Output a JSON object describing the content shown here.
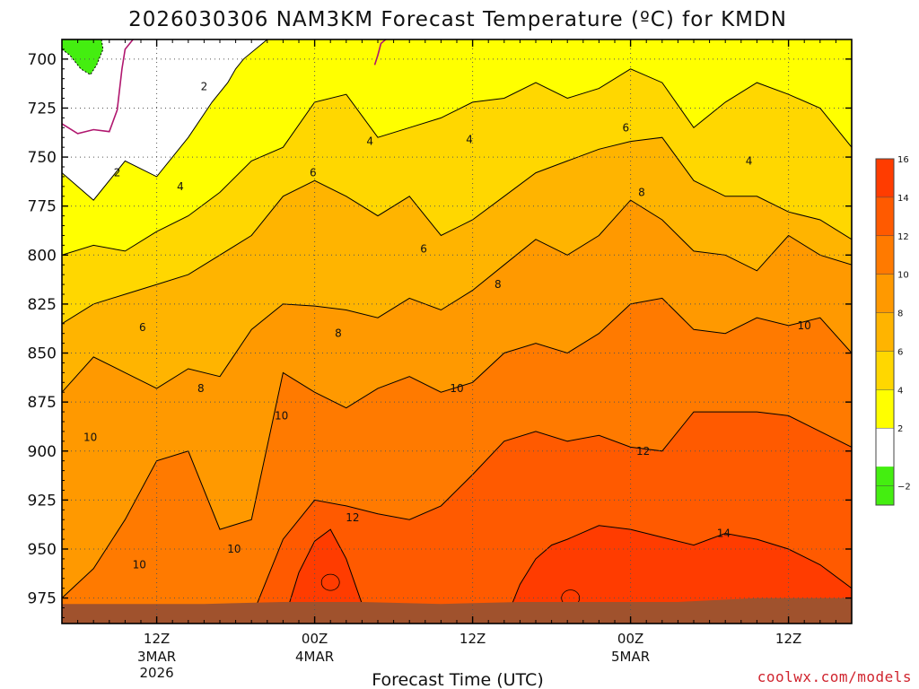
{
  "chart_data": {
    "type": "heatmap",
    "title": "2026030306 NAM3KM Forecast Temperature (ºC) for KMDN",
    "xlabel": "Forecast Time (UTC)",
    "ylabel": "",
    "yaxis": {
      "inverted": true,
      "ylim": [
        988,
        690
      ],
      "ticks": [
        "700",
        "725",
        "750",
        "775",
        "800",
        "825",
        "850",
        "875",
        "900",
        "925",
        "950",
        "975"
      ]
    },
    "xaxis": {
      "xlim": [
        6,
        56
      ],
      "ticks": [
        {
          "x": 12,
          "l1": "12Z",
          "l2": "3MAR",
          "l3": "2026"
        },
        {
          "x": 22,
          "l1": "00Z",
          "l2": "4MAR",
          "l3": ""
        },
        {
          "x": 32,
          "l1": "12Z",
          "l2": "",
          "l3": ""
        },
        {
          "x": 42,
          "l1": "00Z",
          "l2": "5MAR",
          "l3": ""
        },
        {
          "x": 52,
          "l1": "12Z",
          "l2": "",
          "l3": ""
        }
      ]
    },
    "grid": true,
    "colorbar": {
      "colors": [
        "#44ee10",
        "#ffffff",
        "#ffff00",
        "#ffd700",
        "#ffb400",
        "#ff9900",
        "#ff7a00",
        "#ff5a00",
        "#ff3c00"
      ],
      "labels": [
        "-2",
        "2",
        "4",
        "6",
        "8",
        "10",
        "12",
        "14",
        "16"
      ]
    },
    "isotherms": [
      {
        "value": 2,
        "x": [
          6,
          8,
          10,
          12,
          14,
          15.5,
          16.5,
          17,
          17.5,
          19,
          21,
          23,
          25,
          27,
          29,
          31,
          33,
          35,
          37,
          39,
          41,
          43,
          45,
          47,
          49,
          51,
          53,
          56
        ],
        "p": [
          758,
          772,
          752,
          760,
          740,
          722,
          712,
          705,
          700,
          690,
          690,
          690,
          690,
          690,
          690,
          690,
          690,
          690,
          690,
          690,
          690,
          690,
          690,
          690,
          690,
          690,
          690,
          690
        ]
      },
      {
        "value": 4,
        "x": [
          6,
          8,
          10,
          12,
          14,
          16,
          18,
          20,
          22,
          24,
          26,
          28,
          30,
          32,
          34,
          36,
          38,
          40,
          42,
          44,
          46,
          48,
          50,
          52,
          54,
          56
        ],
        "p": [
          800,
          795,
          798,
          788,
          780,
          768,
          752,
          745,
          722,
          718,
          740,
          735,
          730,
          722,
          720,
          712,
          720,
          715,
          705,
          712,
          735,
          722,
          712,
          718,
          725,
          745
        ]
      },
      {
        "value": 6,
        "x": [
          6,
          8,
          10,
          12,
          14,
          16,
          18,
          20,
          22,
          24,
          26,
          28,
          30,
          32,
          34,
          36,
          38,
          40,
          42,
          44,
          46,
          48,
          50,
          52,
          54,
          56
        ],
        "p": [
          835,
          825,
          820,
          815,
          810,
          800,
          790,
          770,
          762,
          770,
          780,
          770,
          790,
          782,
          770,
          758,
          752,
          746,
          742,
          740,
          762,
          770,
          770,
          778,
          782,
          792
        ]
      },
      {
        "value": 8,
        "x": [
          6,
          8,
          10,
          12,
          14,
          16,
          18,
          20,
          22,
          24,
          26,
          28,
          30,
          32,
          34,
          36,
          38,
          40,
          42,
          44,
          46,
          48,
          50,
          52,
          54,
          56
        ],
        "p": [
          870,
          852,
          860,
          868,
          858,
          862,
          838,
          825,
          826,
          828,
          832,
          822,
          828,
          818,
          805,
          792,
          800,
          790,
          772,
          782,
          798,
          800,
          808,
          790,
          800,
          805
        ]
      },
      {
        "value": 10,
        "x": [
          6,
          8,
          10,
          12,
          14,
          16,
          18,
          20,
          22,
          24,
          26,
          28,
          30,
          32,
          34,
          36,
          38,
          40,
          42,
          44,
          46,
          48,
          50,
          52,
          54,
          56
        ],
        "p": [
          975,
          960,
          935,
          905,
          900,
          940,
          935,
          860,
          870,
          878,
          868,
          862,
          870,
          865,
          850,
          845,
          850,
          840,
          825,
          822,
          838,
          840,
          832,
          836,
          832,
          850
        ]
      },
      {
        "value": 12,
        "x": [
          6,
          8,
          10,
          12,
          14,
          16,
          18,
          20,
          22,
          24,
          26,
          28,
          30,
          32,
          34,
          36,
          38,
          40,
          42,
          44,
          46,
          48,
          50,
          52,
          54,
          56
        ],
        "p": [
          988,
          988,
          988,
          988,
          988,
          988,
          985,
          945,
          925,
          928,
          932,
          935,
          928,
          912,
          895,
          890,
          895,
          892,
          898,
          900,
          880,
          880,
          880,
          882,
          890,
          898
        ]
      },
      {
        "value": 14,
        "x": [
          20,
          21,
          22,
          23,
          24,
          25,
          26,
          27,
          34,
          35,
          36,
          37,
          38,
          40,
          42,
          44,
          46,
          48,
          50,
          52,
          54,
          56
        ],
        "p": [
          988,
          962,
          946,
          940,
          955,
          978,
          988,
          988,
          988,
          968,
          955,
          948,
          945,
          938,
          940,
          944,
          948,
          942,
          945,
          950,
          958,
          970
        ]
      }
    ],
    "labels": [
      {
        "text": "2",
        "x": 15.0,
        "p": 714
      },
      {
        "text": "2",
        "x": 9.5,
        "p": 758
      },
      {
        "text": "4",
        "x": 13.5,
        "p": 765
      },
      {
        "text": "4",
        "x": 25.5,
        "p": 742
      },
      {
        "text": "4",
        "x": 31.8,
        "p": 741
      },
      {
        "text": "4",
        "x": 49.5,
        "p": 752
      },
      {
        "text": "6",
        "x": 21.9,
        "p": 758
      },
      {
        "text": "6",
        "x": 28.9,
        "p": 797
      },
      {
        "text": "6",
        "x": 11.1,
        "p": 837
      },
      {
        "text": "6",
        "x": 41.7,
        "p": 735
      },
      {
        "text": "8",
        "x": 23.5,
        "p": 840
      },
      {
        "text": "8",
        "x": 14.8,
        "p": 868
      },
      {
        "text": "8",
        "x": 33.6,
        "p": 815
      },
      {
        "text": "8",
        "x": 42.7,
        "p": 768
      },
      {
        "text": "10",
        "x": 7.8,
        "p": 893
      },
      {
        "text": "10",
        "x": 19.9,
        "p": 882
      },
      {
        "text": "10",
        "x": 31.0,
        "p": 868
      },
      {
        "text": "10",
        "x": 10.9,
        "p": 958
      },
      {
        "text": "10",
        "x": 16.9,
        "p": 950
      },
      {
        "text": "10",
        "x": 53.0,
        "p": 836
      },
      {
        "text": "12",
        "x": 24.4,
        "p": 934
      },
      {
        "text": "12",
        "x": 42.8,
        "p": 900
      },
      {
        "text": "14",
        "x": 47.9,
        "p": 942
      }
    ],
    "coldpocket": {
      "x": [
        6,
        6.5,
        7,
        7.5,
        8,
        8.5,
        8.6,
        8.2,
        7.8,
        7.2,
        6.5,
        6
      ],
      "p": [
        690,
        690,
        690,
        690,
        690,
        690,
        695,
        703,
        708,
        705,
        698,
        695
      ]
    },
    "magenta_line": [
      {
        "x": [
          6,
          7,
          8,
          9,
          9.5,
          9.8,
          10,
          10.5
        ],
        "p": [
          733,
          738,
          736,
          737,
          726,
          705,
          695,
          690
        ]
      },
      {
        "x": [
          25.8,
          26,
          26.2,
          26.5
        ],
        "p": [
          703,
          698,
          692,
          690
        ]
      }
    ],
    "terrain": {
      "color": "#a0522d",
      "x": [
        6,
        10,
        15,
        20,
        25,
        30,
        35,
        40,
        45,
        50,
        56
      ],
      "p": [
        978,
        978,
        978,
        977,
        977,
        978,
        977,
        977,
        977,
        975,
        975
      ]
    }
  },
  "credit": "coolwx.com/models"
}
